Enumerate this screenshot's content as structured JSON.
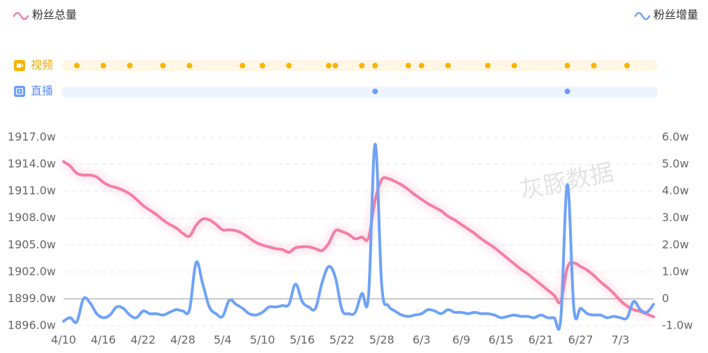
{
  "chart_data": {
    "type": "line",
    "categories": [
      "4/10",
      null,
      null,
      null,
      null,
      null,
      "4/16",
      null,
      null,
      null,
      null,
      null,
      "4/22",
      null,
      null,
      null,
      null,
      null,
      "4/28",
      null,
      null,
      null,
      null,
      null,
      "5/4",
      null,
      null,
      null,
      null,
      null,
      "5/10",
      null,
      null,
      null,
      null,
      null,
      "5/16",
      null,
      null,
      null,
      null,
      null,
      "5/22",
      null,
      null,
      null,
      null,
      null,
      "5/28",
      null,
      null,
      null,
      null,
      null,
      "6/3",
      null,
      null,
      null,
      null,
      null,
      "6/9",
      null,
      null,
      null,
      null,
      null,
      "6/15",
      null,
      null,
      null,
      null,
      null,
      "6/21",
      null,
      null,
      null,
      null,
      null,
      "6/27",
      null,
      null,
      null,
      null,
      null,
      "7/3",
      null,
      null,
      null,
      null,
      null
    ],
    "series": [
      {
        "name": "粉丝总量",
        "color": "#f47ea3",
        "axis": "y",
        "values": [
          1914.3,
          1913.8,
          1913.0,
          1912.8,
          1912.8,
          1912.6,
          1912.0,
          1911.6,
          1911.4,
          1911.1,
          1910.7,
          1910.1,
          1909.4,
          1908.9,
          1908.4,
          1907.8,
          1907.3,
          1906.9,
          1906.3,
          1906.0,
          1907.2,
          1907.9,
          1907.8,
          1907.3,
          1906.7,
          1906.7,
          1906.6,
          1906.3,
          1905.8,
          1905.3,
          1905.0,
          1904.8,
          1904.6,
          1904.5,
          1904.2,
          1904.7,
          1904.8,
          1904.8,
          1904.6,
          1904.4,
          1905.2,
          1906.6,
          1906.5,
          1906.2,
          1905.7,
          1905.9,
          1905.8,
          1910.0,
          1912.3,
          1912.4,
          1912.1,
          1911.7,
          1911.2,
          1910.6,
          1910.1,
          1909.6,
          1909.2,
          1908.8,
          1908.2,
          1907.8,
          1907.3,
          1906.8,
          1906.3,
          1905.7,
          1905.2,
          1904.7,
          1904.1,
          1903.5,
          1902.9,
          1902.3,
          1901.8,
          1901.2,
          1900.6,
          1900.0,
          1899.4,
          1898.7,
          1902.5,
          1903.0,
          1902.6,
          1902.2,
          1901.6,
          1900.9,
          1900.3,
          1899.6,
          1898.8,
          1898.2,
          1897.8,
          1897.6,
          1897.3,
          1897.0
        ]
      },
      {
        "name": "粉丝增量",
        "color": "#6fa2f7",
        "axis": "y2",
        "values": [
          -0.83,
          -0.7,
          -0.85,
          0.0,
          -0.15,
          -0.55,
          -0.7,
          -0.6,
          -0.3,
          -0.35,
          -0.6,
          -0.7,
          -0.45,
          -0.55,
          -0.55,
          -0.6,
          -0.5,
          -0.4,
          -0.45,
          -0.4,
          1.35,
          0.55,
          -0.3,
          -0.55,
          -0.65,
          -0.05,
          -0.2,
          -0.35,
          -0.55,
          -0.6,
          -0.5,
          -0.3,
          -0.3,
          -0.25,
          -0.2,
          0.55,
          -0.1,
          -0.3,
          -0.35,
          0.6,
          1.2,
          0.8,
          -0.4,
          -0.55,
          -0.5,
          0.2,
          0.1,
          5.75,
          0.5,
          -0.25,
          -0.45,
          -0.6,
          -0.65,
          -0.6,
          -0.55,
          -0.4,
          -0.45,
          -0.55,
          -0.4,
          -0.5,
          -0.5,
          -0.55,
          -0.5,
          -0.55,
          -0.55,
          -0.6,
          -0.7,
          -0.65,
          -0.6,
          -0.65,
          -0.65,
          -0.7,
          -0.6,
          -0.7,
          -0.7,
          -0.75,
          4.25,
          -0.4,
          -0.35,
          -0.55,
          -0.6,
          -0.6,
          -0.7,
          -0.65,
          -0.7,
          -0.7,
          -0.1,
          -0.4,
          -0.5,
          -0.2
        ]
      }
    ],
    "ylim": [
      1896,
      1917
    ],
    "yticks": [
      {
        "value": 1917,
        "label": "1917.0w"
      },
      {
        "value": 1914,
        "label": "1914.0w"
      },
      {
        "value": 1911,
        "label": "1911.0w"
      },
      {
        "value": 1908,
        "label": "1908.0w"
      },
      {
        "value": 1905,
        "label": "1905.0w"
      },
      {
        "value": 1902,
        "label": "1902.0w"
      },
      {
        "value": 1899,
        "label": "1899.0w"
      },
      {
        "value": 1896,
        "label": "1896.0w"
      }
    ],
    "y2lim": [
      -1,
      6
    ],
    "y2ticks": [
      {
        "value": 6,
        "label": "6.0w"
      },
      {
        "value": 5,
        "label": "5.0w"
      },
      {
        "value": 4,
        "label": "4.0w"
      },
      {
        "value": 3,
        "label": "3.0w"
      },
      {
        "value": 2,
        "label": "2.0w"
      },
      {
        "value": 1,
        "label": "1.0w"
      },
      0,
      {
        "value": -1,
        "label": "-1.0w"
      }
    ],
    "grid": true,
    "events": [
      {
        "name": "视频",
        "color": "#f8b500",
        "days": [
          2,
          6,
          10,
          15,
          19,
          27,
          30,
          34,
          40,
          41,
          45,
          47,
          52,
          54,
          58,
          64,
          68,
          76,
          80,
          85
        ]
      },
      {
        "name": "直播",
        "color": "#6b9ef5",
        "days": [
          47,
          76
        ]
      }
    ],
    "watermark": "灰豚数据"
  }
}
